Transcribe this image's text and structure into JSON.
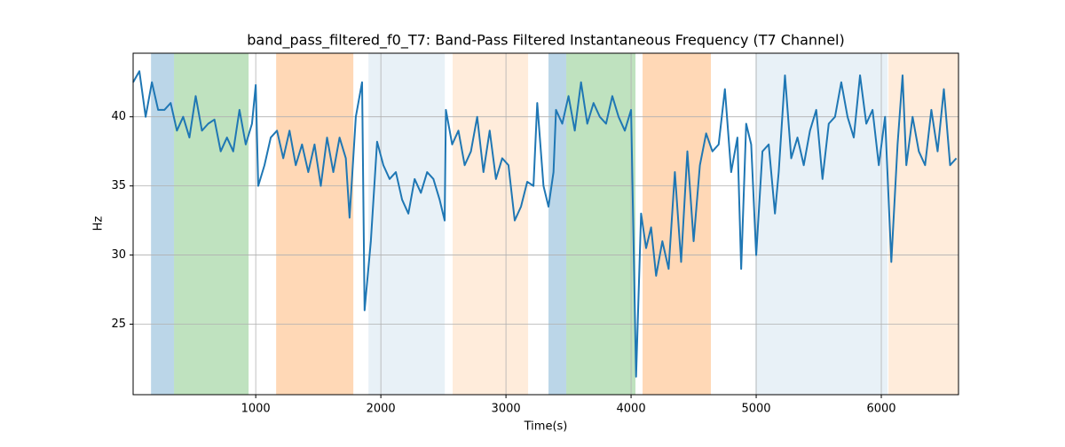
{
  "chart_data": {
    "type": "line",
    "title": "band_pass_filtered_f0_T7: Band-Pass Filtered Instantaneous Frequency (T7 Channel)",
    "x_label": "Time(s)",
    "y_label": "Hz",
    "xlim": [
      20,
      6617
    ],
    "ylim": [
      19.9,
      44.6
    ],
    "xticks": [
      1000,
      2000,
      3000,
      4000,
      5000,
      6000
    ],
    "yticks": [
      25,
      30,
      35,
      40
    ],
    "grid": true,
    "spans": [
      {
        "start": 163,
        "end": 347,
        "color": "rgba(31,119,180,0.3)"
      },
      {
        "start": 347,
        "end": 943,
        "color": "rgba(44,160,44,0.3)"
      },
      {
        "start": 1163,
        "end": 1780,
        "color": "rgba(255,127,14,0.3)"
      },
      {
        "start": 1901,
        "end": 2511,
        "color": "rgba(31,119,180,0.1)"
      },
      {
        "start": 2574,
        "end": 3177,
        "color": "rgba(255,127,14,0.15)"
      },
      {
        "start": 3340,
        "end": 3482,
        "color": "rgba(31,119,180,0.3)"
      },
      {
        "start": 3482,
        "end": 4035,
        "color": "rgba(44,160,44,0.3)"
      },
      {
        "start": 4092,
        "end": 4638,
        "color": "rgba(255,127,14,0.3)"
      },
      {
        "start": 4993,
        "end": 6050,
        "color": "rgba(31,119,180,0.1)"
      },
      {
        "start": 6057,
        "end": 6617,
        "color": "rgba(255,127,14,0.15)"
      }
    ],
    "color": "#1f77b4",
    "x": [
      20,
      70,
      120,
      170,
      220,
      270,
      320,
      370,
      420,
      470,
      520,
      570,
      620,
      670,
      720,
      770,
      820,
      870,
      920,
      970,
      1000,
      1020,
      1070,
      1120,
      1170,
      1220,
      1270,
      1320,
      1370,
      1420,
      1470,
      1520,
      1570,
      1620,
      1670,
      1720,
      1750,
      1800,
      1850,
      1870,
      1920,
      1970,
      2020,
      2070,
      2120,
      2170,
      2220,
      2270,
      2320,
      2370,
      2420,
      2470,
      2510,
      2520,
      2570,
      2620,
      2670,
      2720,
      2770,
      2820,
      2870,
      2920,
      2970,
      3020,
      3070,
      3120,
      3170,
      3220,
      3250,
      3300,
      3340,
      3380,
      3400,
      3450,
      3500,
      3550,
      3600,
      3650,
      3700,
      3750,
      3800,
      3850,
      3900,
      3950,
      4000,
      4040,
      4080,
      4120,
      4160,
      4200,
      4250,
      4300,
      4350,
      4400,
      4450,
      4500,
      4550,
      4600,
      4650,
      4700,
      4750,
      4800,
      4850,
      4880,
      4920,
      4960,
      5000,
      5050,
      5100,
      5150,
      5180,
      5230,
      5280,
      5330,
      5380,
      5430,
      5480,
      5530,
      5580,
      5630,
      5680,
      5730,
      5780,
      5830,
      5880,
      5930,
      5980,
      6030,
      6080,
      6130,
      6170,
      6200,
      6250,
      6300,
      6350,
      6400,
      6450,
      6500,
      6550,
      6600
    ],
    "values": [
      42.5,
      43.3,
      40,
      42.5,
      40.5,
      40.5,
      41,
      39,
      40,
      38.5,
      41.5,
      39,
      39.5,
      39.8,
      37.5,
      38.5,
      37.5,
      40.5,
      38,
      39.5,
      42.3,
      35,
      36.5,
      38.5,
      39,
      37,
      39,
      36.5,
      38,
      36,
      38,
      35,
      38.5,
      36,
      38.5,
      37,
      32.7,
      40,
      42.5,
      26,
      31,
      38.2,
      36.5,
      35.5,
      36,
      34,
      33,
      35.5,
      34.5,
      36,
      35.5,
      34,
      32.5,
      40.5,
      38,
      39,
      36.5,
      37.5,
      40,
      36,
      39,
      35.5,
      37,
      36.5,
      32.5,
      33.5,
      35.3,
      35,
      41,
      35,
      33.5,
      36,
      40.5,
      39.5,
      41.5,
      39,
      42.5,
      39.5,
      41,
      40,
      39.5,
      41.5,
      40,
      39,
      40.5,
      21.2,
      33,
      30.5,
      32,
      28.5,
      31,
      29,
      36,
      29.5,
      37.5,
      31,
      36.5,
      38.8,
      37.5,
      38,
      42,
      36,
      38.5,
      29,
      39.5,
      38,
      30,
      37.5,
      38,
      33,
      36,
      43,
      37,
      38.5,
      36.5,
      39,
      40.5,
      35.5,
      39.5,
      40,
      42.5,
      40,
      38.5,
      43,
      39.5,
      40.5,
      36.5,
      40,
      29.5,
      38,
      43,
      36.5,
      40,
      37.5,
      36.5,
      40.5,
      37.5,
      42,
      36.5,
      37
    ]
  }
}
